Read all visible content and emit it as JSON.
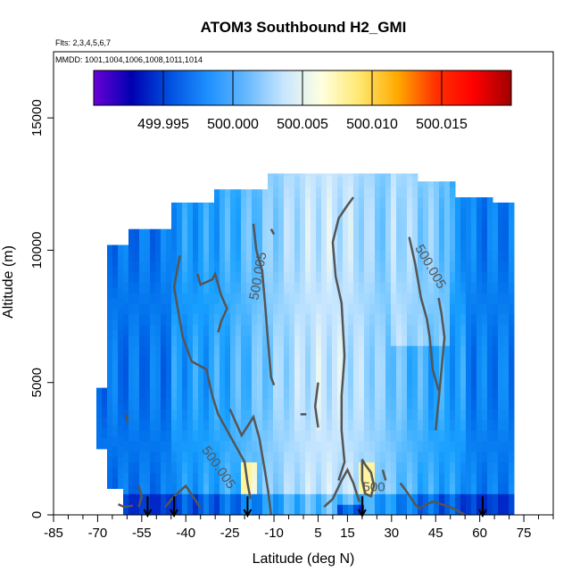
{
  "chart_data": {
    "type": "heatmap",
    "title": "ATOM3 Southbound H2_GMI",
    "flights_note": "Flts: 2,3,4,5,6,7",
    "dates_note": "MMDD: 1001,1004,1006,1008,1011,1014",
    "xlabel": "Latitude (deg N)",
    "ylabel": "Altitude (m)",
    "xlim": [
      -85,
      85
    ],
    "ylim": [
      0,
      17500
    ],
    "x_ticks": [
      -85,
      -70,
      -55,
      -40,
      -25,
      -10,
      5,
      15,
      30,
      45,
      60,
      75
    ],
    "x_minor_ticks": [
      -80,
      -75,
      -65,
      -60,
      -50,
      -45,
      -35,
      -30,
      -20,
      -15,
      -5,
      0,
      10,
      20,
      25,
      35,
      40,
      50,
      55,
      65,
      70,
      80,
      85
    ],
    "y_ticks": [
      0,
      5000,
      10000,
      15000
    ],
    "colorbar": {
      "range": [
        499.99,
        500.02
      ],
      "tick_values": [
        499.995,
        500.0,
        500.005,
        500.01,
        500.015
      ],
      "tick_labels": [
        "499.995",
        "500.000",
        "500.005",
        "500.010",
        "500.015"
      ],
      "colors": [
        "#6a00d8",
        "#0000b0",
        "#0050e0",
        "#1e90ff",
        "#64b8ff",
        "#c8e6ff",
        "#ffffe0",
        "#ffe870",
        "#ffaa00",
        "#ff3300",
        "#ff0000",
        "#a00000"
      ]
    },
    "contour_labels": [
      "500.005",
      "500.005",
      "500.005",
      "500"
    ],
    "profile_latitudes": [
      -53,
      -44,
      -19,
      20,
      61
    ],
    "grid": false
  }
}
